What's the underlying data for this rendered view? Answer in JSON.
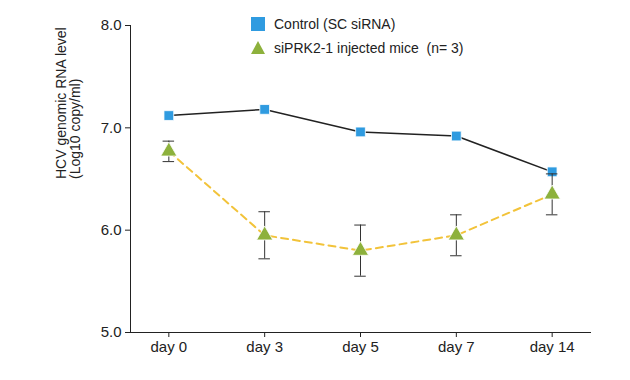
{
  "chart_data": {
    "type": "line",
    "categories": [
      "day 0",
      "day 3",
      "day 5",
      "day 7",
      "day 14"
    ],
    "y_label": "HCV genomic RNA level\n(Log10 copy/ml)",
    "ylim": [
      5,
      8
    ],
    "yticks": [
      5,
      6,
      7,
      8
    ],
    "legend": "top",
    "series": [
      {
        "name": "Control (SC siRNA)",
        "color": "#2f9be0",
        "marker": "square",
        "line_style": "solid",
        "values": [
          7.12,
          7.18,
          6.96,
          6.92,
          6.57
        ]
      },
      {
        "name": "siPRK2-1 injected mice  (n= 3)",
        "color": "#8db13c",
        "marker": "triangle",
        "line_style": "dashed",
        "values": [
          6.77,
          5.95,
          5.8,
          5.95,
          6.35
        ],
        "errors": [
          0.1,
          0.23,
          0.25,
          0.2,
          0.2
        ]
      }
    ]
  }
}
